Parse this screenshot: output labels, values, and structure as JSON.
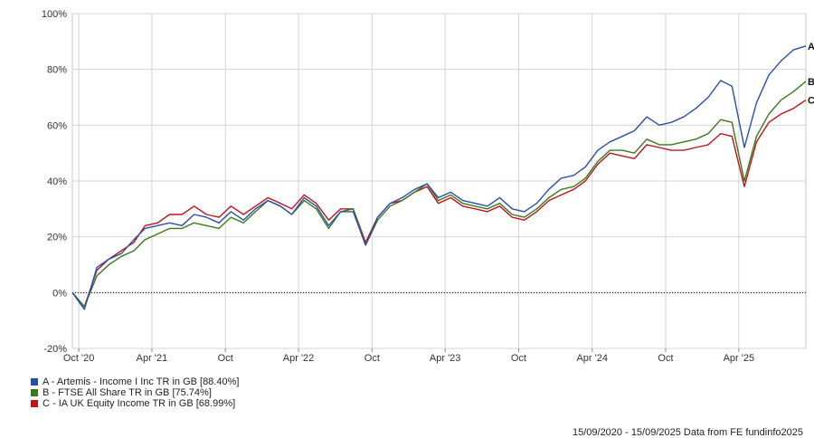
{
  "chart_data": {
    "type": "line",
    "y_ticks": [
      "100%",
      "80%",
      "60%",
      "40%",
      "20%",
      "0%",
      "-20%"
    ],
    "ylim": [
      -20,
      100
    ],
    "x_ticks": [
      "Oct '20",
      "Apr '21",
      "Oct",
      "Apr '22",
      "Oct",
      "Apr '23",
      "Oct",
      "Apr '24",
      "Oct",
      "Apr '25"
    ],
    "x": [
      "2020-09-15",
      "2020-10-15",
      "2020-11-15",
      "2020-12-15",
      "2021-01-15",
      "2021-02-15",
      "2021-03-15",
      "2021-04-15",
      "2021-05-15",
      "2021-06-15",
      "2021-07-15",
      "2021-08-15",
      "2021-09-15",
      "2021-10-15",
      "2021-11-15",
      "2021-12-15",
      "2022-01-15",
      "2022-02-15",
      "2022-03-15",
      "2022-04-15",
      "2022-05-15",
      "2022-06-15",
      "2022-07-15",
      "2022-08-15",
      "2022-09-15",
      "2022-10-15",
      "2022-11-15",
      "2022-12-15",
      "2023-01-15",
      "2023-02-15",
      "2023-03-15",
      "2023-04-15",
      "2023-05-15",
      "2023-06-15",
      "2023-07-15",
      "2023-08-15",
      "2023-09-15",
      "2023-10-15",
      "2023-11-15",
      "2023-12-15",
      "2024-01-15",
      "2024-02-15",
      "2024-03-15",
      "2024-04-15",
      "2024-05-15",
      "2024-06-15",
      "2024-07-15",
      "2024-08-15",
      "2024-09-15",
      "2024-10-15",
      "2024-11-15",
      "2024-12-15",
      "2025-01-15",
      "2025-02-15",
      "2025-03-15",
      "2025-04-15",
      "2025-05-15",
      "2025-06-15",
      "2025-07-15",
      "2025-08-15",
      "2025-09-15"
    ],
    "series": [
      {
        "name": "A - Artemis - Income I Inc TR in GB [88.40%]",
        "end_label": "A",
        "color": "#2a4fa8",
        "values": [
          0,
          -6,
          9,
          12,
          14,
          19,
          23,
          24,
          25,
          24,
          28,
          27,
          25,
          29,
          26,
          30,
          33,
          31,
          28,
          34,
          31,
          24,
          29,
          29,
          17,
          27,
          32,
          34,
          37,
          39,
          34,
          36,
          33,
          32,
          31,
          34,
          30,
          29,
          32,
          37,
          41,
          42,
          45,
          51,
          54,
          56,
          58,
          63,
          60,
          61,
          63,
          66,
          70,
          76,
          74,
          52,
          68,
          78,
          83,
          87,
          88.4
        ]
      },
      {
        "name": "B - FTSE All Share TR in GB [75.74%]",
        "end_label": "B",
        "color": "#3a7a1e",
        "values": [
          0,
          -5,
          6,
          10,
          13,
          15,
          19,
          21,
          23,
          23,
          25,
          24,
          23,
          27,
          25,
          29,
          33,
          31,
          28,
          33,
          30,
          23,
          29,
          30,
          17,
          26,
          31,
          33,
          36,
          39,
          33,
          35,
          32,
          31,
          30,
          32,
          28,
          27,
          30,
          34,
          37,
          38,
          41,
          47,
          51,
          51,
          50,
          55,
          53,
          53,
          54,
          55,
          57,
          62,
          61,
          40,
          56,
          64,
          69,
          72,
          75.7
        ]
      },
      {
        "name": "C - IA UK Equity Income TR in GB [68.99%]",
        "end_label": "C",
        "color": "#c0141c",
        "values": [
          0,
          -5,
          8,
          12,
          15,
          18,
          24,
          25,
          28,
          28,
          31,
          28,
          27,
          31,
          28,
          31,
          34,
          32,
          30,
          35,
          32,
          26,
          30,
          30,
          18,
          27,
          32,
          33,
          36,
          38,
          32,
          34,
          31,
          30,
          29,
          31,
          27,
          26,
          29,
          33,
          35,
          37,
          40,
          46,
          50,
          49,
          48,
          53,
          52,
          51,
          51,
          52,
          53,
          57,
          56,
          38,
          54,
          61,
          64,
          66,
          69.0
        ]
      }
    ]
  },
  "footer_text": "15/09/2020 - 15/09/2025 Data from FE fundinfo2025"
}
